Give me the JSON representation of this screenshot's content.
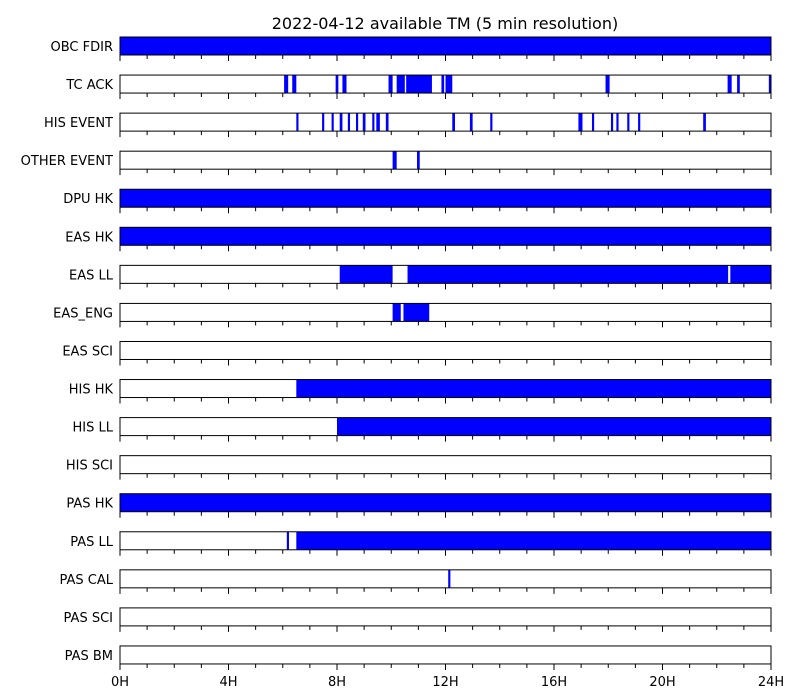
{
  "chart_data": {
    "type": "timeline",
    "title": "2022-04-12 available TM (5 min resolution)",
    "xlim": [
      0,
      24
    ],
    "x_unit": "hours",
    "x_ticks": [
      {
        "value": 0,
        "label": "0H"
      },
      {
        "value": 4,
        "label": "4H"
      },
      {
        "value": 8,
        "label": "8H"
      },
      {
        "value": 12,
        "label": "12H"
      },
      {
        "value": 16,
        "label": "16H"
      },
      {
        "value": 20,
        "label": "20H"
      },
      {
        "value": 24,
        "label": "24H"
      }
    ],
    "minor_tick_step_hours": 1,
    "bar_color": "#0000ff",
    "frame_color": "#000000",
    "rows": [
      {
        "label": "OBC FDIR",
        "intervals": [
          [
            0,
            24
          ]
        ]
      },
      {
        "label": "TC ACK",
        "intervals": [
          [
            6.05,
            6.2
          ],
          [
            6.35,
            6.5
          ],
          [
            7.95,
            8.05
          ],
          [
            8.2,
            8.35
          ],
          [
            9.9,
            10.05
          ],
          [
            10.2,
            10.5
          ],
          [
            10.55,
            11.5
          ],
          [
            11.85,
            11.95
          ],
          [
            12.0,
            12.25
          ],
          [
            17.9,
            18.05
          ],
          [
            22.4,
            22.55
          ],
          [
            22.75,
            22.85
          ],
          [
            23.92,
            24.0
          ]
        ]
      },
      {
        "label": "HIS EVENT",
        "intervals": [
          [
            6.5,
            6.58
          ],
          [
            7.45,
            7.53
          ],
          [
            7.8,
            7.88
          ],
          [
            8.1,
            8.2
          ],
          [
            8.4,
            8.48
          ],
          [
            8.7,
            8.78
          ],
          [
            8.95,
            9.05
          ],
          [
            9.3,
            9.38
          ],
          [
            9.45,
            9.58
          ],
          [
            9.8,
            9.9
          ],
          [
            12.25,
            12.35
          ],
          [
            12.9,
            13.0
          ],
          [
            13.65,
            13.73
          ],
          [
            16.9,
            17.05
          ],
          [
            17.4,
            17.48
          ],
          [
            18.1,
            18.18
          ],
          [
            18.3,
            18.38
          ],
          [
            18.7,
            18.78
          ],
          [
            19.1,
            19.18
          ],
          [
            21.5,
            21.6
          ]
        ]
      },
      {
        "label": "OTHER EVENT",
        "intervals": [
          [
            10.05,
            10.2
          ],
          [
            10.95,
            11.05
          ]
        ]
      },
      {
        "label": "DPU HK",
        "intervals": [
          [
            0,
            24
          ]
        ]
      },
      {
        "label": "EAS HK",
        "intervals": [
          [
            0,
            24
          ]
        ]
      },
      {
        "label": "EAS LL",
        "intervals": [
          [
            8.1,
            10.05
          ],
          [
            10.6,
            22.42
          ],
          [
            22.5,
            24
          ]
        ]
      },
      {
        "label": "EAS_ENG",
        "intervals": [
          [
            10.05,
            10.35
          ],
          [
            10.45,
            11.4
          ]
        ]
      },
      {
        "label": "EAS SCI",
        "intervals": []
      },
      {
        "label": "HIS HK",
        "intervals": [
          [
            6.5,
            24
          ]
        ]
      },
      {
        "label": "HIS LL",
        "intervals": [
          [
            8.0,
            24
          ]
        ]
      },
      {
        "label": "HIS SCI",
        "intervals": []
      },
      {
        "label": "PAS HK",
        "intervals": [
          [
            0,
            24
          ]
        ]
      },
      {
        "label": "PAS LL",
        "intervals": [
          [
            6.15,
            6.23
          ],
          [
            6.5,
            24
          ]
        ]
      },
      {
        "label": "PAS CAL",
        "intervals": [
          [
            12.1,
            12.18
          ]
        ]
      },
      {
        "label": "PAS SCI",
        "intervals": []
      },
      {
        "label": "PAS BM",
        "intervals": []
      }
    ]
  }
}
